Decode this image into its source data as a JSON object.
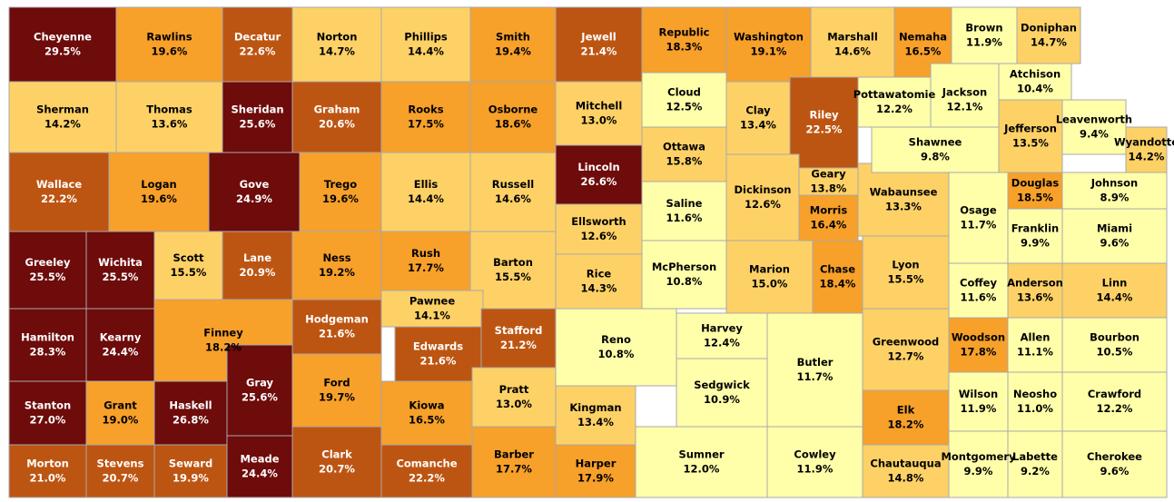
{
  "counties": [
    {
      "name": "Cheyenne",
      "value": 29.5,
      "label": "29.5%",
      "color": "#6e0b0b"
    },
    {
      "name": "Rawlins",
      "value": 19.6,
      "label": "19.6%",
      "color": "#f7a02a"
    },
    {
      "name": "Decatur",
      "value": 22.6,
      "label": "22.6%",
      "color": "#bd5512"
    },
    {
      "name": "Norton",
      "value": 14.7,
      "label": "14.7%",
      "color": "#fdd166"
    },
    {
      "name": "Phillips",
      "value": 14.4,
      "label": "14.4%",
      "color": "#fdd166"
    },
    {
      "name": "Smith",
      "value": 19.4,
      "label": "19.4%",
      "color": "#f7a02a"
    },
    {
      "name": "Jewell",
      "value": 21.4,
      "label": "21.4%",
      "color": "#bd5512"
    },
    {
      "name": "Republic",
      "value": 18.3,
      "label": "18.3%",
      "color": "#f7a02a"
    },
    {
      "name": "Washington",
      "value": 19.1,
      "label": "19.1%",
      "color": "#f7a02a"
    },
    {
      "name": "Marshall",
      "value": 14.6,
      "label": "14.6%",
      "color": "#fdd166"
    },
    {
      "name": "Nemaha",
      "value": 16.5,
      "label": "16.5%",
      "color": "#f7a02a"
    },
    {
      "name": "Brown",
      "value": 11.9,
      "label": "11.9%",
      "color": "#ffffaa"
    },
    {
      "name": "Doniphan",
      "value": 14.7,
      "label": "14.7%",
      "color": "#fdd166"
    },
    {
      "name": "Sherman",
      "value": 14.2,
      "label": "14.2%",
      "color": "#fdd166"
    },
    {
      "name": "Thomas",
      "value": 13.6,
      "label": "13.6%",
      "color": "#fdd166"
    },
    {
      "name": "Sheridan",
      "value": 25.6,
      "label": "25.6%",
      "color": "#6e0b0b"
    },
    {
      "name": "Graham",
      "value": 20.6,
      "label": "20.6%",
      "color": "#bd5512"
    },
    {
      "name": "Rooks",
      "value": 17.5,
      "label": "17.5%",
      "color": "#f7a02a"
    },
    {
      "name": "Osborne",
      "value": 18.6,
      "label": "18.6%",
      "color": "#f7a02a"
    },
    {
      "name": "Mitchell",
      "value": 13.0,
      "label": "13.0%",
      "color": "#fdd166"
    },
    {
      "name": "Cloud",
      "value": 12.5,
      "label": "12.5%",
      "color": "#ffffaa"
    },
    {
      "name": "Clay",
      "value": 13.4,
      "label": "13.4%",
      "color": "#fdd166"
    },
    {
      "name": "Riley",
      "value": 22.5,
      "label": "22.5%",
      "color": "#bd5512"
    },
    {
      "name": "Pottawatomie",
      "value": 12.2,
      "label": "12.2%",
      "color": "#ffffaa"
    },
    {
      "name": "Jackson",
      "value": 12.1,
      "label": "12.1%",
      "color": "#ffffaa"
    },
    {
      "name": "Atchison",
      "value": 10.4,
      "label": "10.4%",
      "color": "#ffffaa"
    },
    {
      "name": "Wallace",
      "value": 22.2,
      "label": "22.2%",
      "color": "#bd5512"
    },
    {
      "name": "Logan",
      "value": 19.6,
      "label": "19.6%",
      "color": "#f7a02a"
    },
    {
      "name": "Gove",
      "value": 24.9,
      "label": "24.9%",
      "color": "#6e0b0b"
    },
    {
      "name": "Trego",
      "value": 19.6,
      "label": "19.6%",
      "color": "#f7a02a"
    },
    {
      "name": "Ellis",
      "value": 14.4,
      "label": "14.4%",
      "color": "#fdd166"
    },
    {
      "name": "Russell",
      "value": 14.6,
      "label": "14.6%",
      "color": "#fdd166"
    },
    {
      "name": "Lincoln",
      "value": 26.6,
      "label": "26.6%",
      "color": "#6e0b0b"
    },
    {
      "name": "Ottawa",
      "value": 15.8,
      "label": "15.8%",
      "color": "#fdd166"
    },
    {
      "name": "Dickinson",
      "value": 12.6,
      "label": "12.6%",
      "color": "#fdd166"
    },
    {
      "name": "Geary",
      "value": 13.8,
      "label": "13.8%",
      "color": "#fdd166"
    },
    {
      "name": "Wabaunsee",
      "value": 13.3,
      "label": "13.3%",
      "color": "#fdd166"
    },
    {
      "name": "Shawnee",
      "value": 9.8,
      "label": "9.8%",
      "color": "#ffffaa"
    },
    {
      "name": "Jefferson",
      "value": 13.5,
      "label": "13.5%",
      "color": "#fdd166"
    },
    {
      "name": "Leavenworth",
      "value": 9.4,
      "label": "9.4%",
      "color": "#ffffaa"
    },
    {
      "name": "Wyandotte",
      "value": 14.2,
      "label": "14.2%",
      "color": "#fdd166"
    },
    {
      "name": "Douglas",
      "value": 18.5,
      "label": "18.5%",
      "color": "#f7a02a"
    },
    {
      "name": "Johnson",
      "value": 8.9,
      "label": "8.9%",
      "color": "#ffffaa"
    },
    {
      "name": "Greeley",
      "value": 25.5,
      "label": "25.5%",
      "color": "#6e0b0b"
    },
    {
      "name": "Wichita",
      "value": 25.5,
      "label": "25.5%",
      "color": "#6e0b0b"
    },
    {
      "name": "Scott",
      "value": 15.5,
      "label": "15.5%",
      "color": "#fdd166"
    },
    {
      "name": "Lane",
      "value": 20.9,
      "label": "20.9%",
      "color": "#bd5512"
    },
    {
      "name": "Ness",
      "value": 19.2,
      "label": "19.2%",
      "color": "#f7a02a"
    },
    {
      "name": "Rush",
      "value": 17.7,
      "label": "17.7%",
      "color": "#f7a02a"
    },
    {
      "name": "Barton",
      "value": 15.5,
      "label": "15.5%",
      "color": "#fdd166"
    },
    {
      "name": "Ellsworth",
      "value": 12.6,
      "label": "12.6%",
      "color": "#fdd166"
    },
    {
      "name": "Saline",
      "value": 11.6,
      "label": "11.6%",
      "color": "#ffffaa"
    },
    {
      "name": "Rice",
      "value": 14.3,
      "label": "14.3%",
      "color": "#fdd166"
    },
    {
      "name": "McPherson",
      "value": 10.8,
      "label": "10.8%",
      "color": "#ffffaa"
    },
    {
      "name": "Marion",
      "value": 15.0,
      "label": "15.0%",
      "color": "#fdd166"
    },
    {
      "name": "Morris",
      "value": 16.4,
      "label": "16.4%",
      "color": "#f7a02a"
    },
    {
      "name": "Chase",
      "value": 18.4,
      "label": "18.4%",
      "color": "#f7a02a"
    },
    {
      "name": "Lyon",
      "value": 15.5,
      "label": "15.5%",
      "color": "#fdd166"
    },
    {
      "name": "Osage",
      "value": 11.7,
      "label": "11.7%",
      "color": "#ffffaa"
    },
    {
      "name": "Franklin",
      "value": 9.9,
      "label": "9.9%",
      "color": "#ffffaa"
    },
    {
      "name": "Miami",
      "value": 9.6,
      "label": "9.6%",
      "color": "#ffffaa"
    },
    {
      "name": "Hamilton",
      "value": 28.3,
      "label": "28.3%",
      "color": "#6e0b0b"
    },
    {
      "name": "Kearny",
      "value": 24.4,
      "label": "24.4%",
      "color": "#6e0b0b"
    },
    {
      "name": "Finney",
      "value": 18.2,
      "label": "18.2%",
      "color": "#f7a02a"
    },
    {
      "name": "Hodgeman",
      "value": 21.6,
      "label": "21.6%",
      "color": "#bd5512"
    },
    {
      "name": "Pawnee",
      "value": 14.1,
      "label": "14.1%",
      "color": "#fdd166"
    },
    {
      "name": "Edwards",
      "value": 21.6,
      "label": "21.6%",
      "color": "#bd5512"
    },
    {
      "name": "Stafford",
      "value": 21.2,
      "label": "21.2%",
      "color": "#bd5512"
    },
    {
      "name": "Reno",
      "value": 10.8,
      "label": "10.8%",
      "color": "#ffffaa"
    },
    {
      "name": "Harvey",
      "value": 12.4,
      "label": "12.4%",
      "color": "#ffffaa"
    },
    {
      "name": "Sedgwick",
      "value": 10.9,
      "label": "10.9%",
      "color": "#ffffaa"
    },
    {
      "name": "Butler",
      "value": 11.7,
      "label": "11.7%",
      "color": "#ffffaa"
    },
    {
      "name": "Greenwood",
      "value": 12.7,
      "label": "12.7%",
      "color": "#fdd166"
    },
    {
      "name": "Coffey",
      "value": 11.6,
      "label": "11.6%",
      "color": "#ffffaa"
    },
    {
      "name": "Anderson",
      "value": 13.6,
      "label": "13.6%",
      "color": "#fdd166"
    },
    {
      "name": "Linn",
      "value": 14.4,
      "label": "14.4%",
      "color": "#fdd166"
    },
    {
      "name": "Woodson",
      "value": 17.8,
      "label": "17.8%",
      "color": "#f7a02a"
    },
    {
      "name": "Allen",
      "value": 11.1,
      "label": "11.1%",
      "color": "#ffffaa"
    },
    {
      "name": "Bourbon",
      "value": 10.5,
      "label": "10.5%",
      "color": "#ffffaa"
    },
    {
      "name": "Stanton",
      "value": 27.0,
      "label": "27.0%",
      "color": "#6e0b0b"
    },
    {
      "name": "Grant",
      "value": 19.0,
      "label": "19.0%",
      "color": "#f7a02a"
    },
    {
      "name": "Haskell",
      "value": 26.8,
      "label": "26.8%",
      "color": "#6e0b0b"
    },
    {
      "name": "Gray",
      "value": 25.6,
      "label": "25.6%",
      "color": "#6e0b0b"
    },
    {
      "name": "Ford",
      "value": 19.7,
      "label": "19.7%",
      "color": "#f7a02a"
    },
    {
      "name": "Kiowa",
      "value": 16.5,
      "label": "16.5%",
      "color": "#f7a02a"
    },
    {
      "name": "Pratt",
      "value": 13.0,
      "label": "13.0%",
      "color": "#fdd166"
    },
    {
      "name": "Kingman",
      "value": 13.4,
      "label": "13.4%",
      "color": "#fdd166"
    },
    {
      "name": "Elk",
      "value": 18.2,
      "label": "18.2%",
      "color": "#f7a02a"
    },
    {
      "name": "Wilson",
      "value": 11.9,
      "label": "11.9%",
      "color": "#ffffaa"
    },
    {
      "name": "Neosho",
      "value": 11.0,
      "label": "11.0%",
      "color": "#ffffaa"
    },
    {
      "name": "Crawford",
      "value": 12.2,
      "label": "12.2%",
      "color": "#ffffaa"
    },
    {
      "name": "Morton",
      "value": 21.0,
      "label": "21.0%",
      "color": "#bd5512"
    },
    {
      "name": "Stevens",
      "value": 20.7,
      "label": "20.7%",
      "color": "#bd5512"
    },
    {
      "name": "Seward",
      "value": 19.9,
      "label": "19.9%",
      "color": "#bd5512"
    },
    {
      "name": "Meade",
      "value": 24.4,
      "label": "24.4%",
      "color": "#6e0b0b"
    },
    {
      "name": "Clark",
      "value": 20.7,
      "label": "20.7%",
      "color": "#bd5512"
    },
    {
      "name": "Comanche",
      "value": 22.2,
      "label": "22.2%",
      "color": "#bd5512"
    },
    {
      "name": "Barber",
      "value": 17.7,
      "label": "17.7%",
      "color": "#f7a02a"
    },
    {
      "name": "Harper",
      "value": 17.9,
      "label": "17.9%",
      "color": "#f7a02a"
    },
    {
      "name": "Sumner",
      "value": 12.0,
      "label": "12.0%",
      "color": "#ffffaa"
    },
    {
      "name": "Cowley",
      "value": 11.9,
      "label": "11.9%",
      "color": "#ffffaa"
    },
    {
      "name": "Chautauqua",
      "value": 14.8,
      "label": "14.8%",
      "color": "#fdd166"
    },
    {
      "name": "Montgomery",
      "value": 9.9,
      "label": "9.9%",
      "color": "#ffffaa"
    },
    {
      "name": "Labette",
      "value": 9.2,
      "label": "9.2%",
      "color": "#ffffaa"
    },
    {
      "name": "Cherokee",
      "value": 9.6,
      "label": "9.6%",
      "color": "#ffffaa"
    }
  ]
}
